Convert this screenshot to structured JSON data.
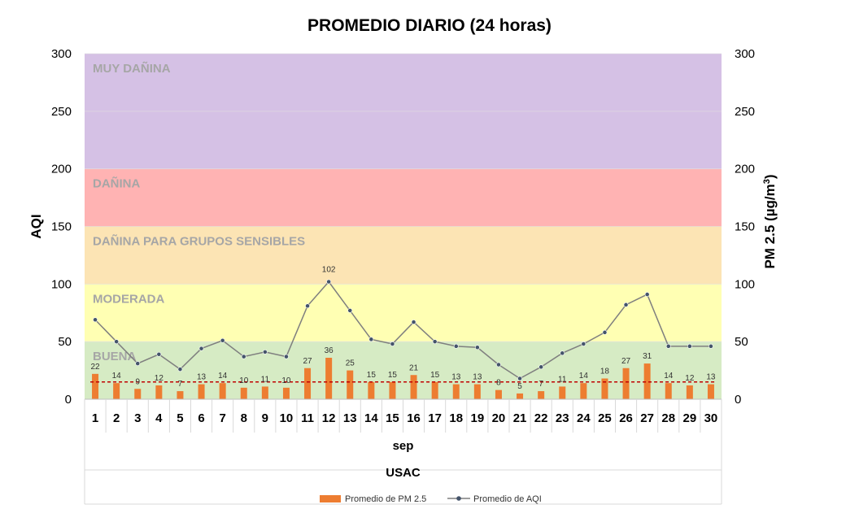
{
  "chart_data": {
    "type": "bar+line",
    "title": "PROMEDIO DIARIO (24 horas)",
    "ylabel_left": "AQI",
    "ylabel_right_main": "PM 2.5 (µg/m",
    "ylabel_right_sup": "3",
    "ylabel_right_end": ")",
    "xlabel_inner": "sep",
    "xlabel_outer": "USAC",
    "ylim": [
      0,
      300
    ],
    "yticks": [
      "0",
      "50",
      "100",
      "150",
      "200",
      "250",
      "300"
    ],
    "categories": [
      "1",
      "2",
      "3",
      "4",
      "5",
      "6",
      "7",
      "8",
      "9",
      "10",
      "11",
      "12",
      "13",
      "14",
      "15",
      "16",
      "17",
      "18",
      "19",
      "20",
      "21",
      "22",
      "23",
      "24",
      "25",
      "26",
      "27",
      "28",
      "29",
      "30"
    ],
    "bands": [
      {
        "label": "BUENA",
        "from": 0,
        "to": 50,
        "color": "#d6ebc4"
      },
      {
        "label": "MODERADA",
        "from": 50,
        "to": 100,
        "color": "#ffffb3"
      },
      {
        "label": "DAÑINA PARA GRUPOS SENSIBLES",
        "from": 100,
        "to": 150,
        "color": "#fce4b4"
      },
      {
        "label": "DAÑINA",
        "from": 150,
        "to": 200,
        "color": "#ffb3b3"
      },
      {
        "label": "MUY DAÑINA",
        "from": 200,
        "to": 300,
        "color": "#d5c1e5"
      }
    ],
    "series": [
      {
        "name": "Promedio de PM 2.5",
        "kind": "bar",
        "color": "#ed7d31",
        "values": [
          22,
          14,
          9,
          12,
          7,
          13,
          14,
          10,
          11,
          10,
          27,
          36,
          25,
          15,
          15,
          21,
          15,
          13,
          13,
          8,
          5,
          7,
          11,
          14,
          18,
          27,
          31,
          14,
          12,
          13
        ]
      },
      {
        "name": "Promedio de AQI",
        "kind": "line",
        "color": "#7f7f7f",
        "marker_color": "#44546a",
        "values": [
          69,
          50,
          31,
          39,
          26,
          44,
          51,
          37,
          41,
          37,
          81,
          102,
          77,
          52,
          48,
          67,
          50,
          46,
          45,
          30,
          18,
          28,
          40,
          48,
          58,
          82,
          91,
          46,
          46,
          46
        ],
        "labeled_points": [
          {
            "index": 11,
            "label": "102"
          }
        ]
      }
    ],
    "threshold": {
      "value": 15,
      "color": "#c00000"
    },
    "legend_position": "bottom"
  }
}
